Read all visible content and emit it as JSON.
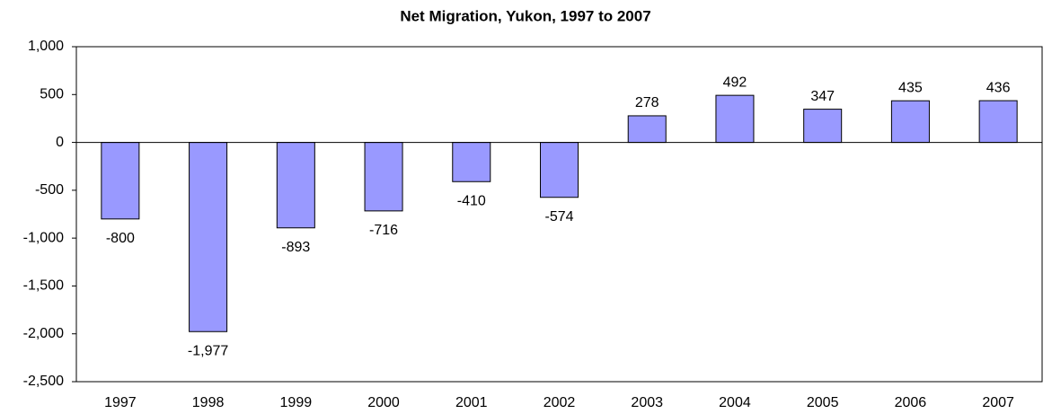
{
  "chart_data": {
    "type": "bar",
    "title": "Net Migration, Yukon, 1997 to 2007",
    "categories": [
      "1997",
      "1998",
      "1999",
      "2000",
      "2001",
      "2002",
      "2003",
      "2004",
      "2005",
      "2006",
      "2007"
    ],
    "values": [
      -800,
      -1977,
      -893,
      -716,
      -410,
      -574,
      278,
      492,
      347,
      435,
      436
    ],
    "value_labels": [
      "-800",
      "-1,977",
      "-893",
      "-716",
      "-410",
      "-574",
      "278",
      "492",
      "347",
      "435",
      "436"
    ],
    "color": "#9999ff",
    "ylim": [
      -2500,
      1000
    ],
    "yticks": [
      {
        "value": -2500,
        "label": "-2,500"
      },
      {
        "value": -2000,
        "label": "-2,000"
      },
      {
        "value": -1500,
        "label": "-1,500"
      },
      {
        "value": -1000,
        "label": "-1,000"
      },
      -500,
      0,
      500,
      {
        "value": 1000,
        "label": "1,000"
      }
    ],
    "grid": false
  }
}
